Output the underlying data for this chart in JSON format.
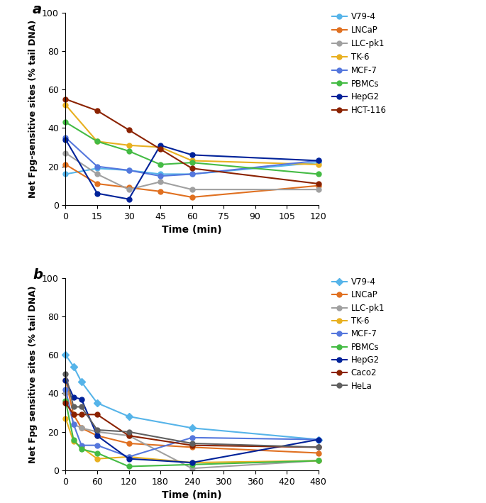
{
  "panel_a": {
    "time": [
      0,
      15,
      30,
      45,
      60,
      120
    ],
    "series": {
      "V79-4": {
        "color": "#56B4E9",
        "values": [
          16,
          19,
          18,
          16,
          16,
          22
        ]
      },
      "LNCaP": {
        "color": "#E07020",
        "values": [
          21,
          11,
          9,
          7,
          4,
          10
        ]
      },
      "LLC-pk1": {
        "color": "#A0A0A0",
        "values": [
          27,
          16,
          8,
          12,
          8,
          8
        ]
      },
      "TK-6": {
        "color": "#E8B020",
        "values": [
          52,
          33,
          31,
          30,
          23,
          21
        ]
      },
      "MCF-7": {
        "color": "#5577DD",
        "values": [
          35,
          20,
          18,
          15,
          16,
          23
        ]
      },
      "PBMCs": {
        "color": "#44BB44",
        "values": [
          43,
          33,
          28,
          21,
          22,
          16
        ]
      },
      "HepG2": {
        "color": "#002299",
        "values": [
          34,
          6,
          3,
          31,
          26,
          23
        ]
      },
      "HCT-116": {
        "color": "#8B2200",
        "values": [
          55,
          49,
          39,
          29,
          19,
          11
        ]
      }
    },
    "xlabel": "Time (min)",
    "ylabel": "Net Fpg-sensitive sites (% tail DNA)",
    "xlim": [
      0,
      120
    ],
    "ylim": [
      0,
      100
    ],
    "xticks": [
      0,
      15,
      30,
      45,
      60,
      75,
      90,
      105,
      120
    ],
    "yticks": [
      0,
      20,
      40,
      60,
      80,
      100
    ],
    "label": "a"
  },
  "panel_b": {
    "time": [
      0,
      15,
      30,
      60,
      120,
      240,
      480
    ],
    "series": {
      "V79-4": {
        "color": "#56B4E9",
        "values": [
          60,
          54,
          46,
          35,
          28,
          22,
          16
        ],
        "marker": "D"
      },
      "LNCaP": {
        "color": "#E07020",
        "values": [
          47,
          29,
          22,
          18,
          14,
          12,
          9
        ]
      },
      "LLC-pk1": {
        "color": "#A0A0A0",
        "values": [
          40,
          24,
          22,
          20,
          18,
          1,
          5
        ]
      },
      "TK-6": {
        "color": "#E8B020",
        "values": [
          27,
          15,
          12,
          6,
          7,
          4,
          5
        ]
      },
      "MCF-7": {
        "color": "#5577DD",
        "values": [
          42,
          24,
          13,
          13,
          7,
          17,
          16
        ]
      },
      "PBMCs": {
        "color": "#44BB44",
        "values": [
          36,
          16,
          11,
          9,
          2,
          3,
          5
        ]
      },
      "HepG2": {
        "color": "#002299",
        "values": [
          47,
          38,
          37,
          18,
          6,
          4,
          16
        ]
      },
      "Caco2": {
        "color": "#8B2200",
        "values": [
          35,
          29,
          29,
          29,
          18,
          13,
          12
        ]
      },
      "HeLa": {
        "color": "#606060",
        "values": [
          50,
          33,
          33,
          21,
          20,
          14,
          12
        ]
      }
    },
    "xlabel": "Time (min)",
    "ylabel": "Net Fpg sensitive sites (% tail DNA)",
    "xlim": [
      0,
      480
    ],
    "ylim": [
      0,
      100
    ],
    "xticks": [
      0,
      60,
      120,
      180,
      240,
      300,
      360,
      420,
      480
    ],
    "yticks": [
      0,
      20,
      40,
      60,
      80,
      100
    ],
    "label": "b"
  },
  "legend_a_order": [
    "V79-4",
    "LNCaP",
    "LLC-pk1",
    "TK-6",
    "MCF-7",
    "PBMCs",
    "HepG2",
    "HCT-116"
  ],
  "legend_b_order": [
    "V79-4",
    "LNCaP",
    "LLC-pk1",
    "TK-6",
    "MCF-7",
    "PBMCs",
    "HepG2",
    "Caco2",
    "HeLa"
  ]
}
